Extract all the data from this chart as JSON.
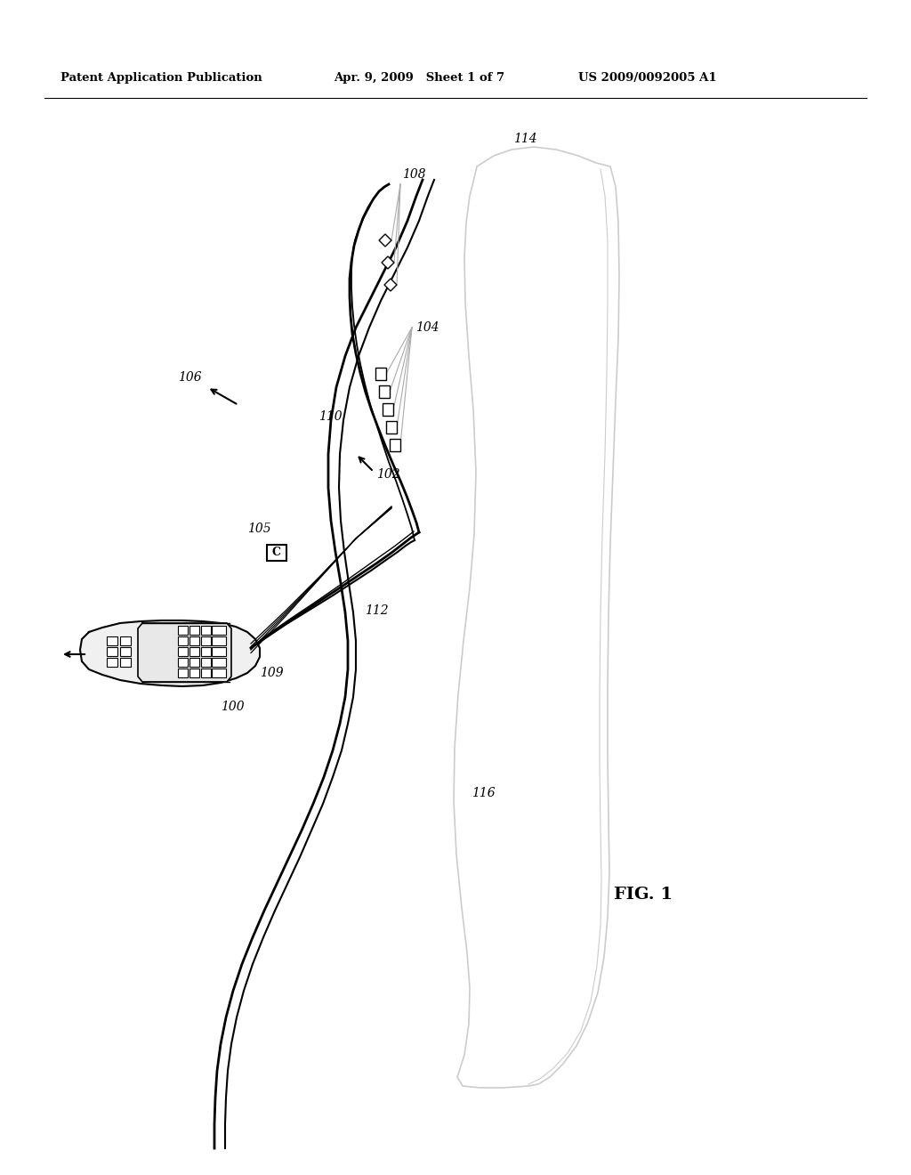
{
  "title_left": "Patent Application Publication",
  "title_mid": "Apr. 9, 2009   Sheet 1 of 7",
  "title_right": "US 2009/0092005 A1",
  "fig_label": "FIG. 1",
  "bg_color": "#ffffff",
  "line_color": "#000000",
  "gray_color": "#888888"
}
